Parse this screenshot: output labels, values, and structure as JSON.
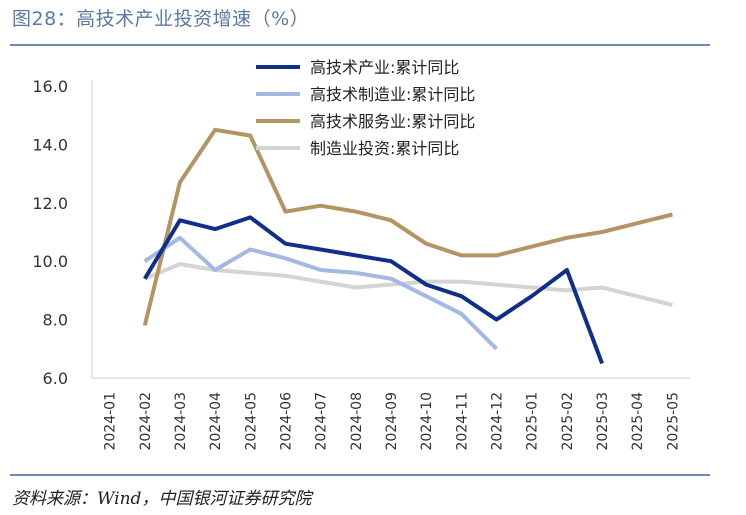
{
  "header": {
    "title": "图28：高技术产业投资增速（%）"
  },
  "footer": {
    "source": "资料来源：Wind，中国银河证券研究院"
  },
  "chart_data": {
    "type": "line",
    "title": "高技术产业投资增速（%）",
    "xlabel": "",
    "ylabel": "",
    "ylim": [
      6.0,
      16.0
    ],
    "yticks": [
      "6.0",
      "8.0",
      "10.0",
      "12.0",
      "14.0",
      "16.0"
    ],
    "categories": [
      "2024-01",
      "2024-02",
      "2024-03",
      "2024-04",
      "2024-05",
      "2024-06",
      "2024-07",
      "2024-08",
      "2024-09",
      "2024-10",
      "2024-11",
      "2024-12",
      "2025-01",
      "2025-02",
      "2025-03",
      "2025-04",
      "2025-05"
    ],
    "legend_position": "top-center",
    "grid": false,
    "series": [
      {
        "name": "高技术产业:累计同比",
        "color": "#0f2f8a",
        "values": [
          null,
          9.4,
          11.4,
          11.1,
          11.5,
          10.6,
          10.4,
          10.2,
          10.0,
          9.2,
          8.8,
          8.0,
          8.8,
          9.7,
          6.5,
          null,
          null
        ]
      },
      {
        "name": "高技术制造业:累计同比",
        "color": "#a3b8e3",
        "values": [
          null,
          10.0,
          10.8,
          9.7,
          10.4,
          10.1,
          9.7,
          9.6,
          9.4,
          8.8,
          8.2,
          7.0,
          null,
          null,
          null,
          null,
          null
        ]
      },
      {
        "name": "高技术服务业:累计同比",
        "color": "#b39463",
        "values": [
          null,
          7.8,
          12.7,
          14.5,
          14.3,
          11.7,
          11.9,
          11.7,
          11.4,
          10.6,
          10.2,
          10.2,
          10.5,
          10.8,
          11.0,
          11.3,
          11.6
        ]
      },
      {
        "name": "制造业投资:累计同比",
        "color": "#d4d4d4",
        "values": [
          null,
          9.4,
          9.9,
          9.7,
          9.6,
          9.5,
          9.3,
          9.1,
          9.2,
          9.3,
          9.3,
          9.2,
          9.1,
          9.0,
          9.1,
          8.8,
          8.5
        ]
      }
    ]
  }
}
